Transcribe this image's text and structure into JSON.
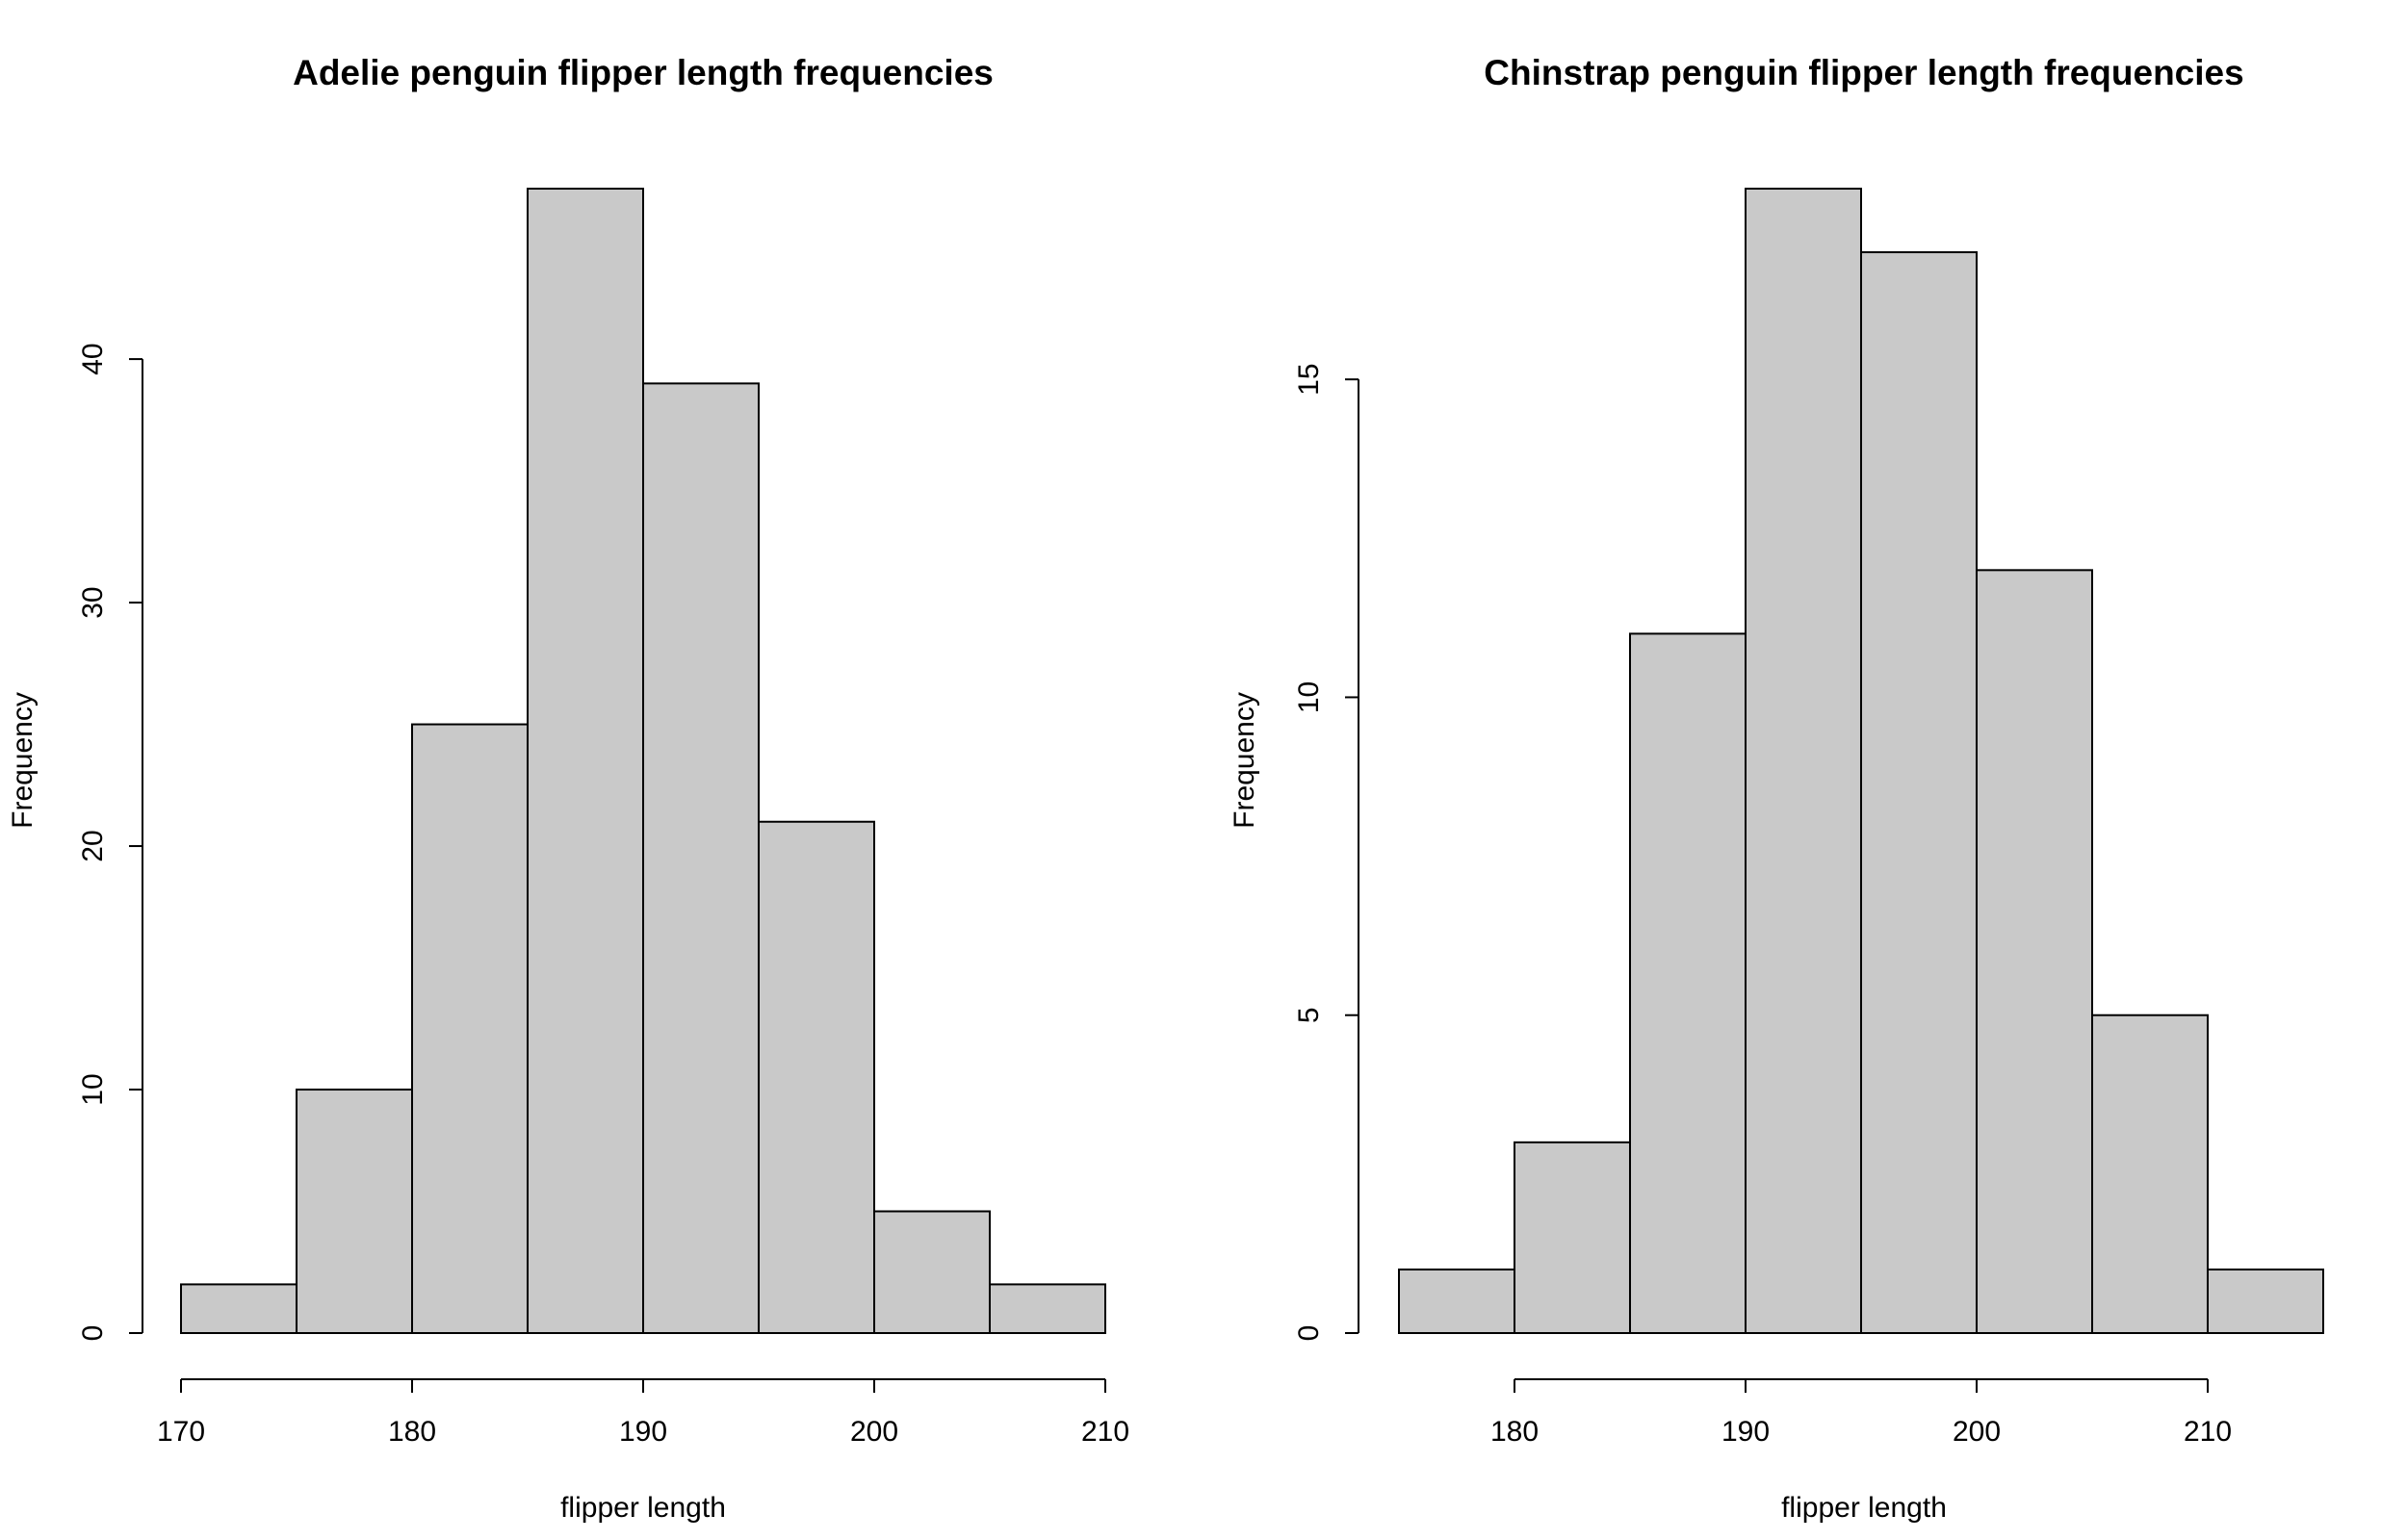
{
  "chart_data": [
    {
      "type": "bar",
      "title": "Adelie penguin flipper length frequencies",
      "xlabel": "flipper length",
      "ylabel": "Frequency",
      "bin_edges": [
        170,
        175,
        180,
        185,
        190,
        195,
        200,
        205,
        210
      ],
      "values": [
        2,
        10,
        25,
        47,
        39,
        21,
        5,
        2
      ],
      "xlim": [
        170,
        210
      ],
      "ylim": [
        0,
        47
      ],
      "x_ticks": [
        170,
        180,
        190,
        200,
        210
      ],
      "y_ticks": [
        0,
        10,
        20,
        30,
        40
      ],
      "bar_color": "#c9c9c9",
      "grid": false
    },
    {
      "type": "bar",
      "title": "Chinstrap penguin flipper length frequencies",
      "xlabel": "flipper length",
      "ylabel": "Frequency",
      "bin_edges": [
        175,
        180,
        185,
        190,
        195,
        200,
        205,
        210,
        215
      ],
      "values": [
        1,
        3,
        11,
        18,
        17,
        12,
        5,
        1
      ],
      "xlim": [
        175,
        215
      ],
      "ylim": [
        0,
        18
      ],
      "x_ticks": [
        180,
        190,
        200,
        210
      ],
      "y_ticks": [
        0,
        5,
        10,
        15
      ],
      "bar_color": "#c9c9c9",
      "grid": false
    }
  ]
}
